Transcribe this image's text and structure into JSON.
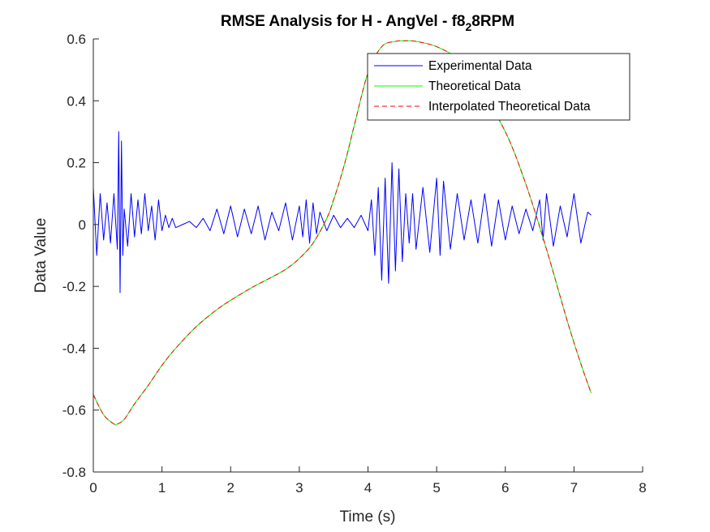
{
  "chart_data": {
    "type": "line",
    "title": "RMSE Analysis for H - AngVel - f8",
    "title_subscript": "2",
    "title_suffix": "8RPM",
    "xlabel": "Time (s)",
    "ylabel": "Data Value",
    "xlim": [
      0,
      8
    ],
    "ylim": [
      -0.8,
      0.6
    ],
    "xticks": [
      0,
      1,
      2,
      3,
      4,
      5,
      6,
      7,
      8
    ],
    "xtick_labels": [
      "0",
      "1",
      "2",
      "3",
      "4",
      "5",
      "6",
      "7",
      "8"
    ],
    "yticks": [
      -0.8,
      -0.6,
      -0.4,
      -0.2,
      0,
      0.2,
      0.4,
      0.6
    ],
    "ytick_labels": [
      "-0.8",
      "-0.6",
      "-0.4",
      "-0.2",
      "0",
      "0.2",
      "0.4",
      "0.6"
    ],
    "grid": false,
    "legend_position": "top-right",
    "series": [
      {
        "name": "Experimental Data",
        "color": "#0000ff",
        "style": "solid",
        "x": [
          0.0,
          0.05,
          0.1,
          0.15,
          0.2,
          0.25,
          0.3,
          0.35,
          0.37,
          0.39,
          0.41,
          0.43,
          0.45,
          0.5,
          0.55,
          0.6,
          0.65,
          0.7,
          0.75,
          0.8,
          0.85,
          0.9,
          0.95,
          1.0,
          1.05,
          1.1,
          1.15,
          1.2,
          1.3,
          1.4,
          1.5,
          1.6,
          1.7,
          1.8,
          1.9,
          2.0,
          2.1,
          2.2,
          2.3,
          2.4,
          2.5,
          2.6,
          2.7,
          2.8,
          2.9,
          3.0,
          3.05,
          3.1,
          3.15,
          3.2,
          3.25,
          3.3,
          3.4,
          3.5,
          3.6,
          3.7,
          3.8,
          3.9,
          4.0,
          4.05,
          4.1,
          4.15,
          4.2,
          4.25,
          4.3,
          4.35,
          4.4,
          4.45,
          4.5,
          4.55,
          4.6,
          4.65,
          4.7,
          4.8,
          4.9,
          5.0,
          5.05,
          5.1,
          5.2,
          5.3,
          5.4,
          5.5,
          5.6,
          5.7,
          5.8,
          5.9,
          6.0,
          6.1,
          6.2,
          6.3,
          6.4,
          6.5,
          6.55,
          6.6,
          6.7,
          6.8,
          6.9,
          7.0,
          7.1,
          7.2,
          7.25
        ],
        "y": [
          0.12,
          -0.1,
          0.1,
          -0.05,
          0.07,
          -0.06,
          0.1,
          -0.08,
          0.3,
          -0.22,
          0.27,
          -0.1,
          0.05,
          -0.07,
          0.1,
          -0.04,
          0.08,
          -0.03,
          0.1,
          -0.02,
          0.06,
          -0.05,
          0.08,
          -0.02,
          0.03,
          -0.01,
          0.02,
          -0.01,
          0.0,
          0.01,
          -0.01,
          0.02,
          -0.02,
          0.05,
          -0.03,
          0.06,
          -0.04,
          0.05,
          -0.03,
          0.06,
          -0.05,
          0.04,
          -0.02,
          0.07,
          -0.05,
          0.06,
          -0.04,
          0.08,
          -0.06,
          0.07,
          -0.03,
          0.04,
          -0.02,
          0.03,
          -0.01,
          0.02,
          -0.01,
          0.03,
          -0.02,
          0.08,
          -0.1,
          0.12,
          -0.18,
          0.15,
          -0.19,
          0.2,
          -0.15,
          0.18,
          -0.12,
          0.1,
          -0.06,
          0.1,
          -0.08,
          0.12,
          -0.09,
          0.15,
          -0.1,
          0.14,
          -0.08,
          0.1,
          -0.05,
          0.08,
          -0.06,
          0.1,
          -0.07,
          0.08,
          -0.05,
          0.06,
          -0.03,
          0.05,
          -0.02,
          0.08,
          -0.05,
          0.1,
          -0.07,
          0.06,
          -0.04,
          0.1,
          -0.06,
          0.04,
          0.03
        ]
      },
      {
        "name": "Theoretical Data",
        "color": "#00ff00",
        "style": "solid",
        "x": [
          0.0,
          0.15,
          0.3,
          0.35,
          0.45,
          0.6,
          0.8,
          1.0,
          1.2,
          1.5,
          1.8,
          2.0,
          2.3,
          2.6,
          2.8,
          3.0,
          3.2,
          3.4,
          3.5,
          3.6,
          3.7,
          3.8,
          4.0,
          4.2,
          4.4,
          4.55,
          4.7,
          5.0,
          5.3,
          5.6,
          6.0,
          6.3,
          6.6,
          6.9,
          7.1,
          7.25
        ],
        "y": [
          -0.55,
          -0.615,
          -0.645,
          -0.645,
          -0.63,
          -0.58,
          -0.52,
          -0.455,
          -0.4,
          -0.33,
          -0.275,
          -0.245,
          -0.205,
          -0.17,
          -0.145,
          -0.11,
          -0.06,
          0.02,
          0.08,
          0.15,
          0.23,
          0.32,
          0.49,
          0.575,
          0.592,
          0.594,
          0.592,
          0.575,
          0.535,
          0.45,
          0.3,
          0.13,
          -0.08,
          -0.31,
          -0.45,
          -0.545
        ]
      },
      {
        "name": "Interpolated Theoretical Data",
        "color": "#ff0000",
        "style": "dashed",
        "x": [
          0.0,
          0.15,
          0.3,
          0.35,
          0.45,
          0.6,
          0.8,
          1.0,
          1.2,
          1.5,
          1.8,
          2.0,
          2.3,
          2.6,
          2.8,
          3.0,
          3.2,
          3.4,
          3.5,
          3.6,
          3.7,
          3.8,
          4.0,
          4.2,
          4.4,
          4.55,
          4.7,
          5.0,
          5.3,
          5.6,
          6.0,
          6.3,
          6.6,
          6.9,
          7.1,
          7.25
        ],
        "y": [
          -0.55,
          -0.615,
          -0.645,
          -0.645,
          -0.63,
          -0.58,
          -0.52,
          -0.455,
          -0.4,
          -0.33,
          -0.275,
          -0.245,
          -0.205,
          -0.17,
          -0.145,
          -0.11,
          -0.06,
          0.02,
          0.08,
          0.15,
          0.23,
          0.32,
          0.49,
          0.575,
          0.592,
          0.594,
          0.592,
          0.575,
          0.535,
          0.45,
          0.3,
          0.13,
          -0.08,
          -0.31,
          -0.45,
          -0.545
        ]
      }
    ]
  }
}
